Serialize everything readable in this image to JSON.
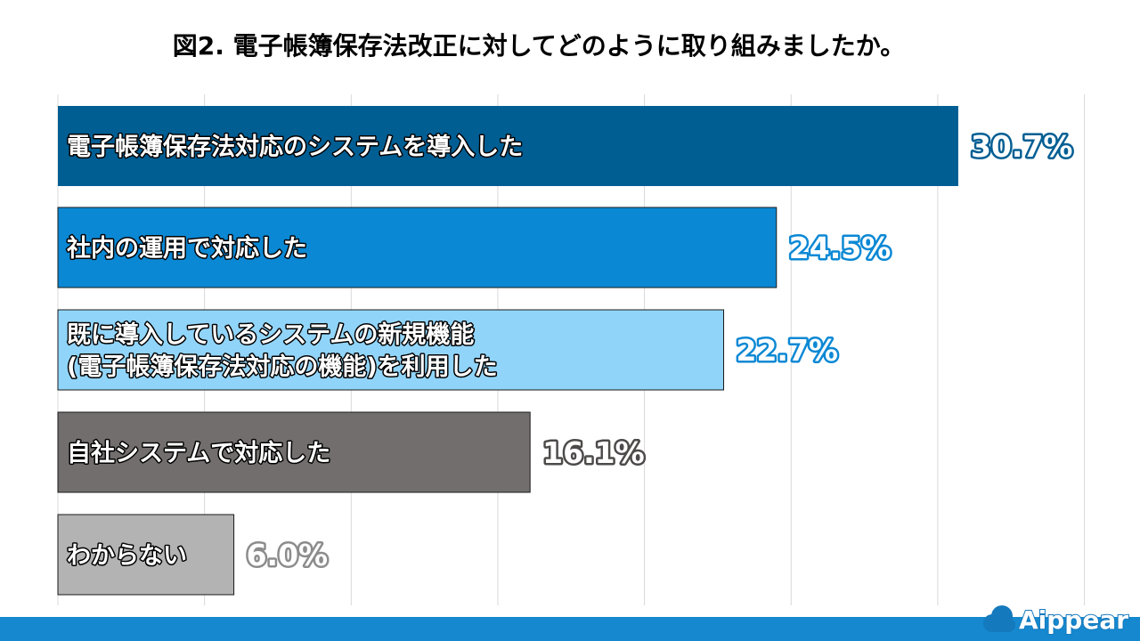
{
  "colors": {
    "primary": "#005e93",
    "secondary": "#0b88d4",
    "light": "#91d4f9",
    "dark_gray": "#736e6e",
    "light_gray": "#b3b3b3",
    "grid": "#d9d9d9",
    "footer": "#1588cf"
  },
  "brand": {
    "name": "Aippear"
  },
  "chart_data": {
    "type": "bar",
    "orientation": "horizontal",
    "title": "図2. 電子帳簿保存法改正に対してどのように取り組みましたか。",
    "categories": [
      [
        "電子帳簿保存法対応のシステムを導入した"
      ],
      [
        "社内の運用で対応した"
      ],
      [
        "既に導入しているシステムの新規機能",
        "(電子帳簿保存法対応の機能)を利用した"
      ],
      [
        "自社システムで対応した"
      ],
      [
        "わからない"
      ]
    ],
    "values": [
      30.7,
      24.5,
      22.7,
      16.1,
      6.0
    ],
    "value_labels": [
      "30.7%",
      "24.5%",
      "22.7%",
      "16.1%",
      "6.0%"
    ],
    "unit": "%",
    "bar_colors": [
      "#005e93",
      "#0b88d4",
      "#91d4f9",
      "#736e6e",
      "#b3b3b3"
    ],
    "label_colors": [
      "#ffffff",
      "#ffffff",
      "#ffffff",
      "#ffffff",
      "#ffffff"
    ],
    "value_outline_colors": [
      "#005e93",
      "#0b88d4",
      "#0b88d4",
      "#4d4a4a",
      "#8c8c8c"
    ],
    "xlim": [
      0,
      35
    ],
    "grid": true,
    "legend": "none"
  }
}
